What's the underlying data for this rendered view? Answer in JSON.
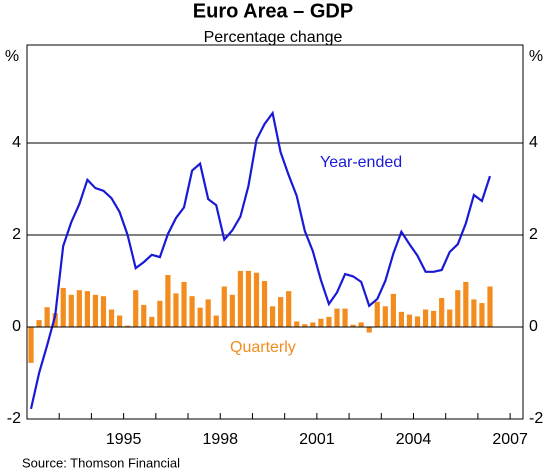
{
  "chart_data": {
    "type": "bar_line",
    "title": "Euro Area – GDP",
    "subtitle": "Percentage change",
    "y_label": "%",
    "source": "Source: Thomson Financial",
    "annotations": {
      "line": "Year-ended",
      "bar": "Quarterly"
    },
    "xlim": [
      1992,
      2007.4
    ],
    "xticks": [
      1995,
      1998,
      2001,
      2004,
      2007
    ],
    "xticks_minor": [
      1993,
      1994,
      1995,
      1996,
      1997,
      1998,
      1999,
      2000,
      2001,
      2002,
      2003,
      2004,
      2005,
      2006,
      2007
    ],
    "ylim": [
      -2,
      6
    ],
    "yticks": [
      -2,
      0,
      2,
      4
    ],
    "grid": true,
    "x": [
      1992.125,
      1992.375,
      1992.625,
      1992.875,
      1993.125,
      1993.375,
      1993.625,
      1993.875,
      1994.125,
      1994.375,
      1994.625,
      1994.875,
      1995.125,
      1995.375,
      1995.625,
      1995.875,
      1996.125,
      1996.375,
      1996.625,
      1996.875,
      1997.125,
      1997.375,
      1997.625,
      1997.875,
      1998.125,
      1998.375,
      1998.625,
      1998.875,
      1999.125,
      1999.375,
      1999.625,
      1999.875,
      2000.125,
      2000.375,
      2000.625,
      2000.875,
      2001.125,
      2001.375,
      2001.625,
      2001.875,
      2002.125,
      2002.375,
      2002.625,
      2002.875,
      2003.125,
      2003.375,
      2003.625,
      2003.875,
      2004.125,
      2004.375,
      2004.625,
      2004.875,
      2005.125,
      2005.375,
      2005.625,
      2005.875,
      2006.125,
      2006.375
    ],
    "series": [
      {
        "name": "Quarterly",
        "kind": "bar",
        "color": "#f28c1e",
        "values": [
          -0.78,
          0.15,
          0.43,
          0.3,
          0.85,
          0.7,
          0.8,
          0.78,
          0.7,
          0.67,
          0.38,
          0.25,
          0.03,
          0.8,
          0.48,
          0.22,
          0.57,
          1.13,
          0.73,
          0.98,
          0.67,
          0.42,
          0.6,
          0.25,
          0.88,
          0.7,
          1.22,
          1.22,
          1.18,
          1.0,
          0.45,
          0.65,
          0.78,
          0.12,
          0.06,
          0.1,
          0.18,
          0.22,
          0.4,
          0.4,
          0.05,
          0.1,
          -0.12,
          0.55,
          0.45,
          0.72,
          0.33,
          0.27,
          0.23,
          0.38,
          0.35,
          0.63,
          0.38,
          0.8,
          0.98,
          0.6,
          0.52,
          0.88
        ]
      },
      {
        "name": "Year-ended",
        "kind": "line",
        "color": "#1a1ad6",
        "values": [
          -1.78,
          -1.0,
          -0.4,
          0.25,
          1.76,
          2.28,
          2.67,
          3.2,
          3.02,
          2.96,
          2.8,
          2.5,
          2.0,
          1.28,
          1.41,
          1.57,
          1.52,
          2.02,
          2.37,
          2.6,
          3.4,
          3.55,
          2.78,
          2.65,
          1.9,
          2.1,
          2.4,
          3.06,
          4.07,
          4.41,
          4.65,
          3.8,
          3.3,
          2.85,
          2.09,
          1.65,
          1.02,
          0.5,
          0.75,
          1.15,
          1.1,
          0.98,
          0.46,
          0.61,
          1.0,
          1.6,
          2.07,
          1.8,
          1.55,
          1.2,
          1.2,
          1.24,
          1.63,
          1.8,
          2.25,
          2.87,
          2.74,
          3.28
        ]
      }
    ]
  }
}
